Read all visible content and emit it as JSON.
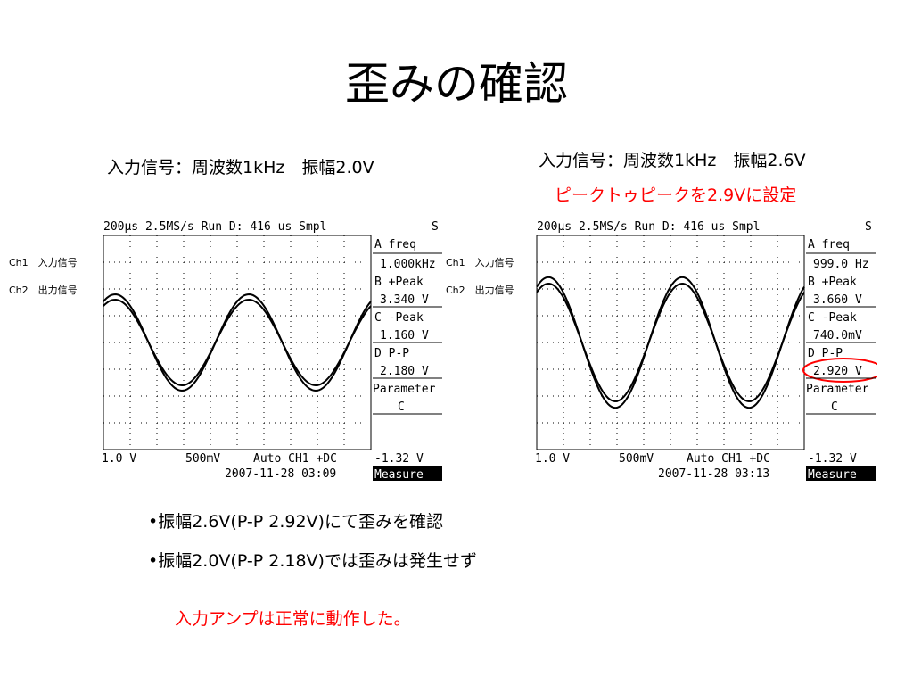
{
  "slide": {
    "title": "歪みの確認",
    "bullets": [
      "•振幅2.6V(P-P 2.92V)にて歪みを確認",
      "•振幅2.0V(P-P 2.18V)では歪みは発生せず"
    ],
    "conclusion": "入力アンプは正常に動作した。"
  },
  "colors": {
    "accent_red": "#ff0000",
    "text": "#000000"
  },
  "scopes": [
    {
      "caption": "入力信号：周波数1kHz　振幅2.0V",
      "note": "",
      "ch1_label": "Ch1　入力信号",
      "ch2_label": "Ch2　出力信号",
      "header": "200μs  2.5MS/s Run D: 416 us Smpl",
      "header_flag": "S",
      "timestamp": "2007-11-28 03:09",
      "scale_text": "1.0 V   500mV   Auto CH1 +DC",
      "ch1_scale": "1.0 V",
      "ch2_scale": "500mV",
      "trigger": "Auto CH1 +DC",
      "trigger_level": "-1.32 V",
      "measure_label": "Measure",
      "amplitude_in": 0.9,
      "amplitude_out": 0.8,
      "measurements": [
        {
          "label": "A freq",
          "value": "1.000kHz"
        },
        {
          "label": "B +Peak",
          "value": "3.340 V"
        },
        {
          "label": "C -Peak",
          "value": "1.160 V"
        },
        {
          "label": "D P-P",
          "value": "2.180 V"
        }
      ],
      "parameter_label": "Parameter",
      "parameter_value": "C",
      "highlight": false
    },
    {
      "caption": "入力信号：周波数1kHz　振幅2.6V",
      "note": "ピークトゥピークを2.9Vに設定",
      "ch1_label": "Ch1　入力信号",
      "ch2_label": "Ch2　出力信号",
      "header": "200μs  2.5MS/s Run D: 416 us Smpl",
      "header_flag": "S",
      "timestamp": "2007-11-28 03:13",
      "ch1_scale": "1.0 V",
      "ch2_scale": "500mV",
      "trigger": "Auto CH1 +DC",
      "trigger_level": "-1.32 V",
      "measure_label": "Measure",
      "amplitude_in": 1.22,
      "amplitude_out": 1.1,
      "measurements": [
        {
          "label": "A freq",
          "value": "999.0 Hz"
        },
        {
          "label": "B +Peak",
          "value": "3.660 V"
        },
        {
          "label": "C -Peak",
          "value": "740.0mV"
        },
        {
          "label": "D P-P",
          "value": "2.920 V"
        }
      ],
      "parameter_label": "Parameter",
      "parameter_value": "C",
      "highlight": true
    }
  ]
}
